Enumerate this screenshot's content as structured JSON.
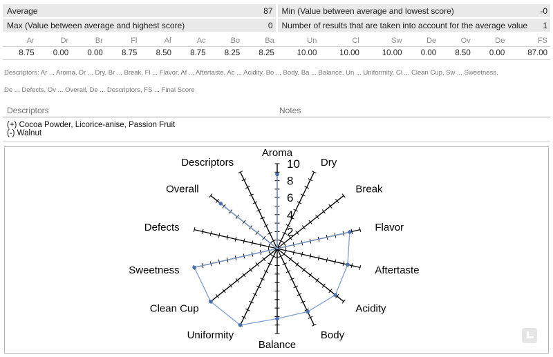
{
  "stats": {
    "average_label": "Average",
    "average_value": "87",
    "min_label": "Min (Value between average and lowest score)",
    "min_value": "-0",
    "max_label": "Max (Value between average and highest score)",
    "max_value": "0",
    "count_label": "Number of results that are taken into account for the average value",
    "count_value": "1"
  },
  "scores": {
    "headers": [
      "Ar",
      "Dr",
      "Br",
      "Fl",
      "Af",
      "Ac",
      "Bo",
      "Ba",
      "Un",
      "Cl",
      "Sw",
      "De",
      "Ov",
      "De",
      "FS"
    ],
    "values": [
      "8.75",
      "0.00",
      "0.00",
      "8.75",
      "8.50",
      "8.75",
      "8.25",
      "8.25",
      "10.00",
      "10.00",
      "10.00",
      "0.00",
      "8.50",
      "0.00",
      "87.00"
    ]
  },
  "legend": {
    "line1": "Descriptors: Ar ... Aroma, Dr ... Dry, Br ... Break, Fl ... Flavor, Af ... Aftertaste, Ac ... Acidity, Bo ... Body, Ba ... Balance, Un ... Uniformity, Cl ... Clean Cup, Sw ... Sweetness,",
    "line2": "De ... Defects, Ov ... Overall, De ... Descriptors, FS ... Final Score"
  },
  "notes": {
    "descriptors_header": "Descriptors",
    "notes_header": "Notes",
    "line1": "(+) Cocoa Powder, Licorice-anise, Passion Fruit",
    "line2": "(-) Walnut"
  },
  "chart_data": {
    "type": "radar",
    "categories": [
      "Aroma",
      "Dry",
      "Break",
      "Flavor",
      "Aftertaste",
      "Acidity",
      "Body",
      "Balance",
      "Uniformity",
      "Clean Cup",
      "Sweetness",
      "Defects",
      "Overall",
      "Descriptors"
    ],
    "values": [
      8.75,
      0,
      0,
      8.75,
      8.5,
      8.75,
      8.25,
      8.25,
      10,
      10,
      10,
      0,
      8.5,
      0
    ],
    "tick_labels": [
      "2",
      "4",
      "6",
      "8",
      "10"
    ],
    "rmax": 10,
    "line_color": "#7e9fd0",
    "marker_color": "#4a6fae",
    "axis_color": "#000000"
  }
}
